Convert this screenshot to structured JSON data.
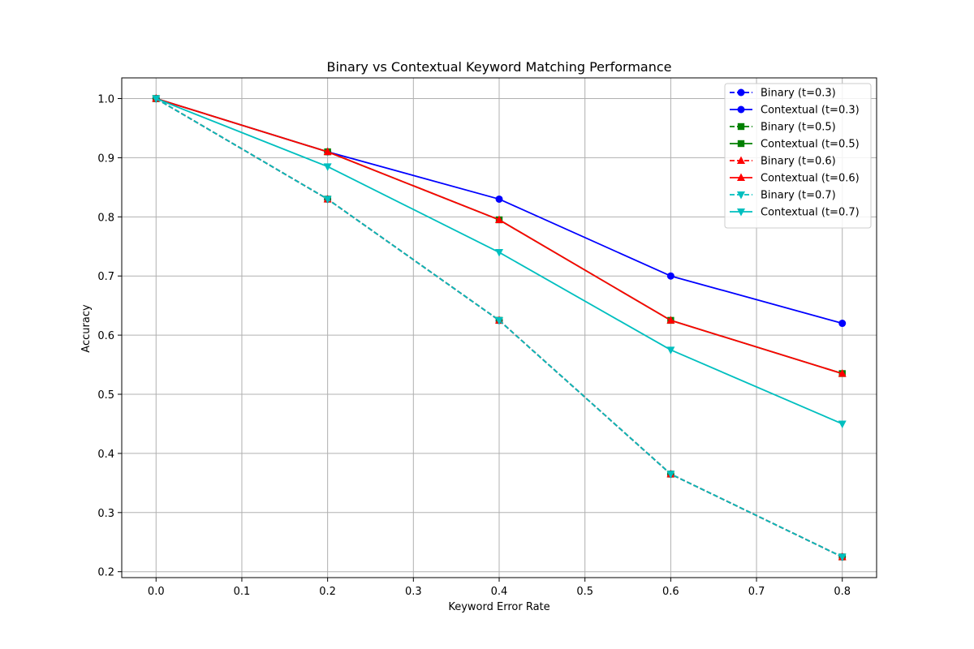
{
  "chart_data": {
    "type": "line",
    "title": "Binary vs Contextual Keyword Matching Performance",
    "xlabel": "Keyword Error Rate",
    "ylabel": "Accuracy",
    "x": [
      0.0,
      0.2,
      0.4,
      0.6,
      0.8
    ],
    "xlim": [
      -0.04,
      0.84
    ],
    "ylim": [
      0.19,
      1.035
    ],
    "xticks": [
      "0.0",
      "0.1",
      "0.2",
      "0.3",
      "0.4",
      "0.5",
      "0.6",
      "0.7",
      "0.8"
    ],
    "yticks": [
      "0.2",
      "0.3",
      "0.4",
      "0.5",
      "0.6",
      "0.7",
      "0.8",
      "0.9",
      "1.0"
    ],
    "grid": true,
    "legend_position": "top-right",
    "series": [
      {
        "name": "Binary (t=0.3)",
        "style": "dashed",
        "marker": "circle",
        "color": "#0000ff",
        "values": [
          1.0,
          0.83,
          0.625,
          0.365,
          0.225
        ]
      },
      {
        "name": "Contextual (t=0.3)",
        "style": "solid",
        "marker": "circle",
        "color": "#0000ff",
        "values": [
          1.0,
          0.91,
          0.83,
          0.7,
          0.62
        ]
      },
      {
        "name": "Binary (t=0.5)",
        "style": "dashed",
        "marker": "square",
        "color": "#008000",
        "values": [
          1.0,
          0.83,
          0.625,
          0.365,
          0.225
        ]
      },
      {
        "name": "Contextual (t=0.5)",
        "style": "solid",
        "marker": "square",
        "color": "#008000",
        "values": [
          1.0,
          0.91,
          0.795,
          0.625,
          0.535
        ]
      },
      {
        "name": "Binary (t=0.6)",
        "style": "dashed",
        "marker": "triangle-up",
        "color": "#ff0000",
        "values": [
          1.0,
          0.83,
          0.625,
          0.365,
          0.225
        ]
      },
      {
        "name": "Contextual (t=0.6)",
        "style": "solid",
        "marker": "triangle-up",
        "color": "#ff0000",
        "values": [
          1.0,
          0.91,
          0.795,
          0.625,
          0.535
        ]
      },
      {
        "name": "Binary (t=0.7)",
        "style": "dashed",
        "marker": "triangle-down",
        "color": "#00bfbf",
        "values": [
          1.0,
          0.83,
          0.625,
          0.365,
          0.225
        ]
      },
      {
        "name": "Contextual (t=0.7)",
        "style": "solid",
        "marker": "triangle-down",
        "color": "#00bfbf",
        "values": [
          1.0,
          0.885,
          0.74,
          0.575,
          0.45
        ]
      }
    ]
  }
}
